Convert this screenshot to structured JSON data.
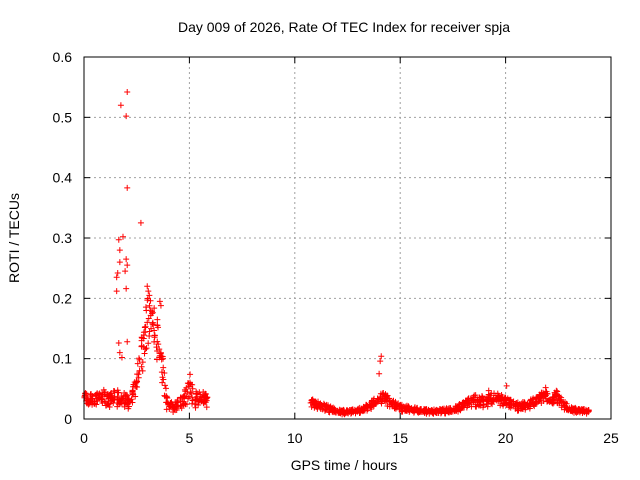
{
  "chart_data": {
    "type": "scatter",
    "title": "Day 009 of 2026, Rate Of TEC Index for receiver spja",
    "xlabel": "GPS time / hours",
    "ylabel": "ROTI / TECUs",
    "xlim": [
      0,
      25
    ],
    "ylim": [
      0,
      0.6
    ],
    "grid": true,
    "marker": "+",
    "color": "#ff0000",
    "x_ticks": [
      "0",
      "5",
      "10",
      "15",
      "20",
      "25"
    ],
    "y_ticks": [
      "0",
      "0.1",
      "0.2",
      "0.3",
      "0.4",
      "0.5",
      "0.6"
    ],
    "x_tick_values": [
      0,
      5,
      10,
      15,
      20,
      25
    ],
    "y_tick_values": [
      0,
      0.1,
      0.2,
      0.3,
      0.4,
      0.5,
      0.6
    ],
    "outliers": [
      [
        1.75,
        0.52
      ],
      [
        2.05,
        0.542
      ],
      [
        2.0,
        0.502
      ],
      [
        2.05,
        0.383
      ],
      [
        2.7,
        0.325
      ],
      [
        1.85,
        0.302
      ],
      [
        1.65,
        0.297
      ],
      [
        1.55,
        0.235
      ],
      [
        1.7,
        0.28
      ],
      [
        2.0,
        0.265
      ],
      [
        2.05,
        0.255
      ],
      [
        1.95,
        0.245
      ],
      [
        1.6,
        0.242
      ],
      [
        1.7,
        0.26
      ],
      [
        2.0,
        0.216
      ],
      [
        1.55,
        0.212
      ],
      [
        1.65,
        0.126
      ],
      [
        2.05,
        0.128
      ],
      [
        1.7,
        0.11
      ],
      [
        1.8,
        0.102
      ],
      [
        3.0,
        0.22
      ],
      [
        3.05,
        0.212
      ],
      [
        3.1,
        0.205
      ],
      [
        3.6,
        0.195
      ],
      [
        3.65,
        0.188
      ],
      [
        14.1,
        0.104
      ],
      [
        14.05,
        0.096
      ],
      [
        14.0,
        0.075
      ],
      [
        20.05,
        0.055
      ],
      [
        19.2,
        0.047
      ],
      [
        21.9,
        0.052
      ]
    ],
    "envelope": [
      [
        0.0,
        0.036,
        0.012
      ],
      [
        0.25,
        0.034,
        0.01
      ],
      [
        0.5,
        0.03,
        0.01
      ],
      [
        0.75,
        0.034,
        0.012
      ],
      [
        1.0,
        0.036,
        0.014
      ],
      [
        1.25,
        0.03,
        0.012
      ],
      [
        1.5,
        0.035,
        0.014
      ],
      [
        1.75,
        0.032,
        0.014
      ],
      [
        2.0,
        0.03,
        0.012
      ],
      [
        2.2,
        0.025,
        0.01
      ],
      [
        2.5,
        0.06,
        0.02
      ],
      [
        2.75,
        0.11,
        0.04
      ],
      [
        3.0,
        0.16,
        0.04
      ],
      [
        3.2,
        0.165,
        0.035
      ],
      [
        3.4,
        0.14,
        0.035
      ],
      [
        3.6,
        0.115,
        0.035
      ],
      [
        3.75,
        0.075,
        0.03
      ],
      [
        3.85,
        0.04,
        0.02
      ],
      [
        4.0,
        0.02,
        0.01
      ],
      [
        4.3,
        0.018,
        0.008
      ],
      [
        4.6,
        0.028,
        0.012
      ],
      [
        4.85,
        0.038,
        0.014
      ],
      [
        5.0,
        0.05,
        0.03
      ],
      [
        5.2,
        0.03,
        0.014
      ],
      [
        5.5,
        0.035,
        0.012
      ],
      [
        5.75,
        0.032,
        0.012
      ],
      [
        5.9,
        0.028,
        0.01
      ],
      [
        10.7,
        0.026,
        0.008
      ],
      [
        11.0,
        0.024,
        0.007
      ],
      [
        11.5,
        0.018,
        0.006
      ],
      [
        12.0,
        0.012,
        0.004
      ],
      [
        12.5,
        0.011,
        0.004
      ],
      [
        13.0,
        0.013,
        0.004
      ],
      [
        13.5,
        0.02,
        0.006
      ],
      [
        13.9,
        0.03,
        0.008
      ],
      [
        14.2,
        0.035,
        0.01
      ],
      [
        14.6,
        0.025,
        0.008
      ],
      [
        15.0,
        0.018,
        0.006
      ],
      [
        15.5,
        0.016,
        0.005
      ],
      [
        16.0,
        0.013,
        0.004
      ],
      [
        16.5,
        0.012,
        0.004
      ],
      [
        17.0,
        0.013,
        0.004
      ],
      [
        17.5,
        0.014,
        0.005
      ],
      [
        18.0,
        0.022,
        0.007
      ],
      [
        18.5,
        0.03,
        0.01
      ],
      [
        19.0,
        0.028,
        0.01
      ],
      [
        19.5,
        0.035,
        0.01
      ],
      [
        20.0,
        0.028,
        0.009
      ],
      [
        20.5,
        0.02,
        0.007
      ],
      [
        21.0,
        0.022,
        0.007
      ],
      [
        21.5,
        0.03,
        0.008
      ],
      [
        21.9,
        0.04,
        0.01
      ],
      [
        22.1,
        0.025,
        0.008
      ],
      [
        22.4,
        0.038,
        0.01
      ],
      [
        22.7,
        0.025,
        0.008
      ],
      [
        23.0,
        0.016,
        0.005
      ],
      [
        23.5,
        0.013,
        0.004
      ],
      [
        23.95,
        0.012,
        0.004
      ]
    ]
  }
}
